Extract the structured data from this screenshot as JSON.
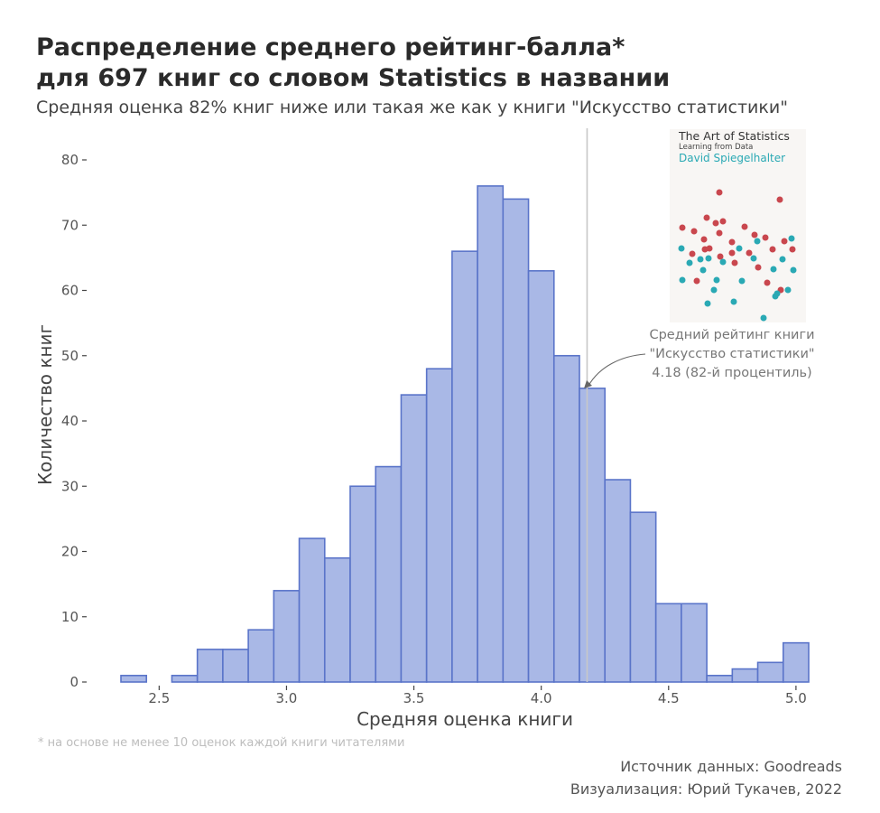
{
  "title_line1": "Распределение среднего рейтинг-балла*",
  "title_line2": "для 697 книг со словом Statistics в названии",
  "subtitle": "Средняя оценка 82% книг ниже или такая же как у книги \"Искусство статистики\"",
  "footnote": "* на основе не менее 10 оценок каждой книги читателями",
  "source": "Источник данных: Goodreads",
  "credit": "Визуализация: Юрий Тукачев, 2022",
  "annotation": {
    "line1": "Средний рейтинг книги",
    "line2": "\"Искусство статистики\"",
    "line3": "4.18 (82-й процентиль)"
  },
  "book_cover": {
    "title": "The Art of Statistics",
    "subtitle": "Learning from Data",
    "author": "David Spiegelhalter"
  },
  "colors": {
    "bar_fill": "#a9b8e6",
    "bar_stroke": "#5a74c9",
    "reference_line": "#c8c8c8",
    "dot_red": "#c9474e",
    "dot_teal": "#2aa9b4"
  },
  "chart_data": {
    "type": "bar",
    "title": "Распределение среднего рейтинг-балла* для 697 книг со словом Statistics в названии",
    "xlabel": "Средняя оценка книги",
    "ylabel": "Количество книг",
    "xlim": [
      2.35,
      5.05
    ],
    "ylim": [
      0,
      80
    ],
    "bin_width": 0.1,
    "bin_starts": [
      2.35,
      2.45,
      2.55,
      2.65,
      2.75,
      2.85,
      2.95,
      3.05,
      3.15,
      3.25,
      3.35,
      3.45,
      3.55,
      3.65,
      3.75,
      3.85,
      3.95,
      4.05,
      4.15,
      4.25,
      4.35,
      4.45,
      4.55,
      4.65,
      4.75,
      4.85,
      4.95
    ],
    "values": [
      1,
      0,
      1,
      5,
      5,
      8,
      14,
      22,
      19,
      30,
      33,
      44,
      48,
      66,
      76,
      74,
      63,
      50,
      45,
      31,
      26,
      12,
      12,
      1,
      2,
      3,
      6
    ],
    "x_ticks": [
      "2.5",
      "3.0",
      "3.5",
      "4.0",
      "4.5",
      "5.0"
    ],
    "y_ticks": [
      "0",
      "10",
      "20",
      "30",
      "40",
      "50",
      "60",
      "70",
      "80"
    ],
    "reference_x": 4.18,
    "grid": false,
    "legend": "none"
  }
}
